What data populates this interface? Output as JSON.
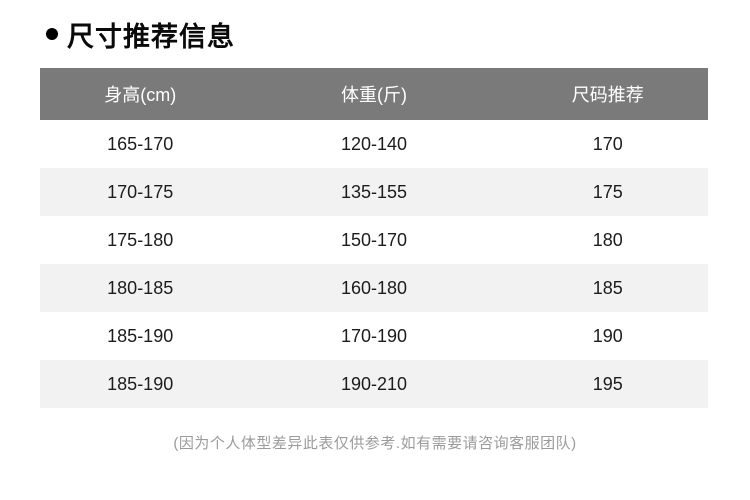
{
  "page": {
    "title": "尺寸推荐信息",
    "footnote": "(因为个人体型差异此表仅供参考.如有需要请咨询客服团队)"
  },
  "table": {
    "headers": [
      "身高(cm)",
      "体重(斤)",
      "尺码推荐"
    ],
    "rows": [
      [
        "165-170",
        "120-140",
        "170"
      ],
      [
        "170-175",
        "135-155",
        "175"
      ],
      [
        "175-180",
        "150-170",
        "180"
      ],
      [
        "180-185",
        "160-180",
        "185"
      ],
      [
        "185-190",
        "170-190",
        "190"
      ],
      [
        "185-190",
        "190-210",
        "195"
      ]
    ]
  },
  "icons": {
    "title_bullet": "black-dot"
  },
  "colors": {
    "header_bg": "#7a7a7a",
    "header_text": "#ffffff",
    "row_bg": "#ffffff",
    "row_alt_bg": "#f2f2f2",
    "row_text": "#1c1c1c",
    "title_text": "#0a0a0a",
    "footnote_text": "#9b9b9b"
  }
}
